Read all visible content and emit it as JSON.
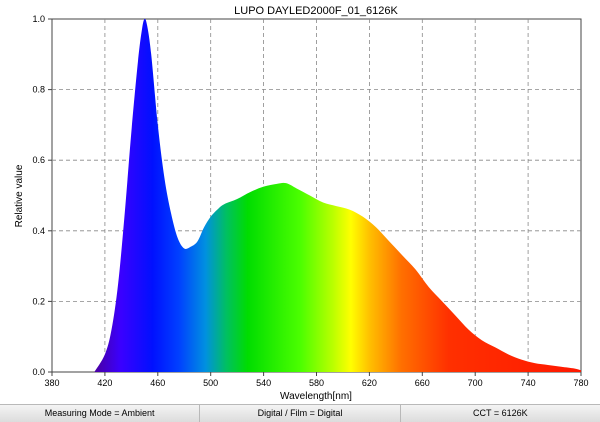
{
  "chart_data": {
    "type": "area",
    "title": "LUPO DAYLED2000F_01_6126K",
    "xlabel": "Wavelength[nm]",
    "ylabel": "Relative value",
    "xlim": [
      380,
      780
    ],
    "ylim": [
      0,
      1.0
    ],
    "x_ticks": [
      380,
      420,
      460,
      500,
      540,
      580,
      620,
      660,
      700,
      740,
      780
    ],
    "y_ticks": [
      0.0,
      0.2,
      0.4,
      0.6,
      0.8,
      1.0
    ],
    "x_tick_labels": [
      "380",
      "420",
      "460",
      "500",
      "540",
      "580",
      "620",
      "660",
      "700",
      "740",
      "780"
    ],
    "y_tick_labels": [
      "0.0",
      "0.2",
      "0.4",
      "0.6",
      "0.8",
      "1.0"
    ],
    "grid": true,
    "fill": "visible-spectrum gradient",
    "x": [
      412,
      420,
      425,
      430,
      435,
      440,
      445,
      448,
      450,
      452,
      455,
      460,
      465,
      470,
      475,
      480,
      485,
      490,
      495,
      500,
      505,
      510,
      520,
      530,
      540,
      550,
      557,
      565,
      575,
      585,
      595,
      605,
      615,
      625,
      635,
      645,
      655,
      665,
      675,
      685,
      695,
      705,
      715,
      725,
      735,
      745,
      755,
      765,
      775,
      780
    ],
    "y": [
      0.0,
      0.05,
      0.12,
      0.25,
      0.45,
      0.68,
      0.88,
      0.97,
      1.0,
      0.98,
      0.9,
      0.7,
      0.55,
      0.45,
      0.38,
      0.35,
      0.355,
      0.37,
      0.41,
      0.44,
      0.46,
      0.475,
      0.49,
      0.51,
      0.525,
      0.533,
      0.535,
      0.52,
      0.5,
      0.48,
      0.47,
      0.46,
      0.44,
      0.41,
      0.37,
      0.33,
      0.29,
      0.24,
      0.2,
      0.16,
      0.12,
      0.09,
      0.07,
      0.05,
      0.035,
      0.025,
      0.02,
      0.015,
      0.01,
      0.005
    ]
  },
  "status_bar": {
    "measuring_mode": "Measuring Mode = Ambient",
    "digital_film": "Digital / Film = Digital",
    "cct": "CCT = 6126K"
  }
}
